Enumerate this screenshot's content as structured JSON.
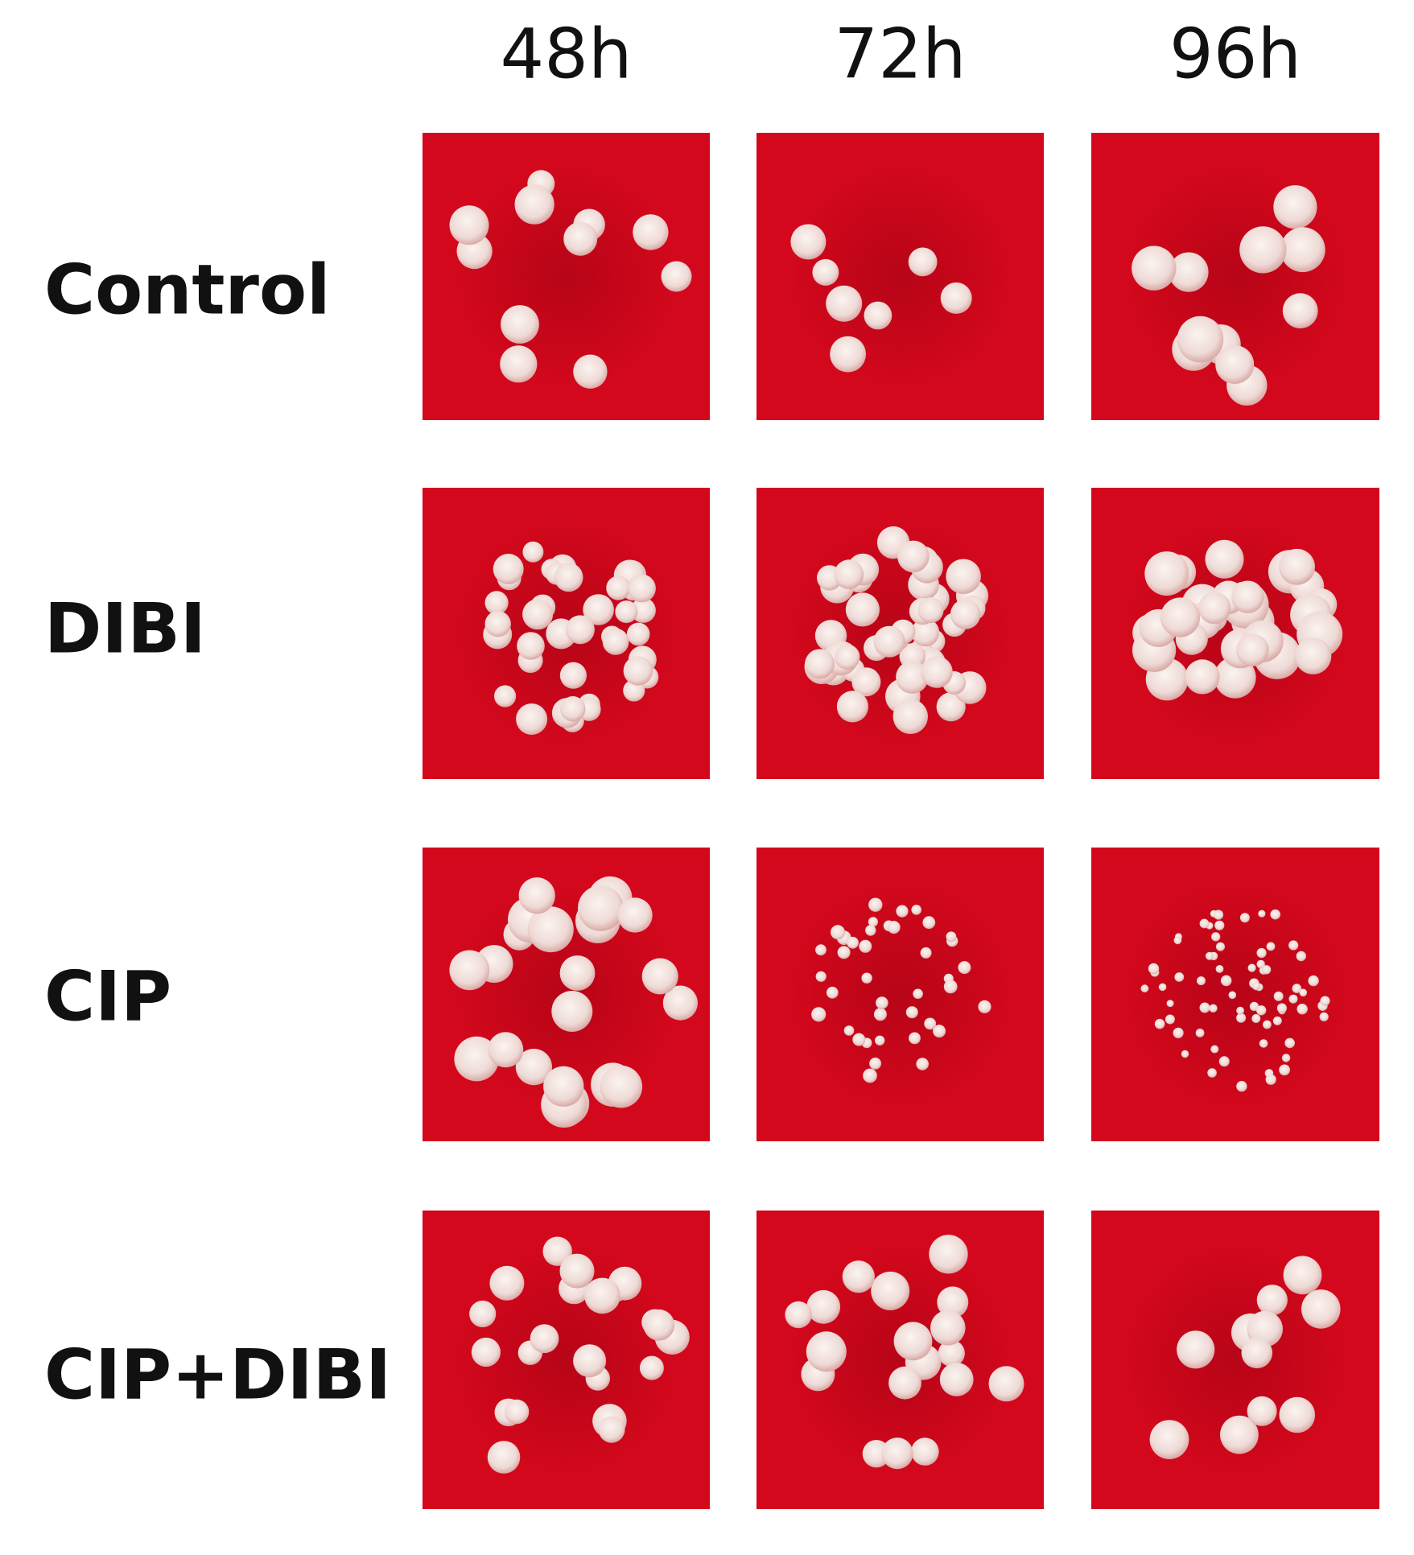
{
  "columns": [
    "48h",
    "72h",
    "96h"
  ],
  "rows": [
    "Control",
    "DIBI",
    "CIP",
    "CIP+DIBI"
  ]
}
